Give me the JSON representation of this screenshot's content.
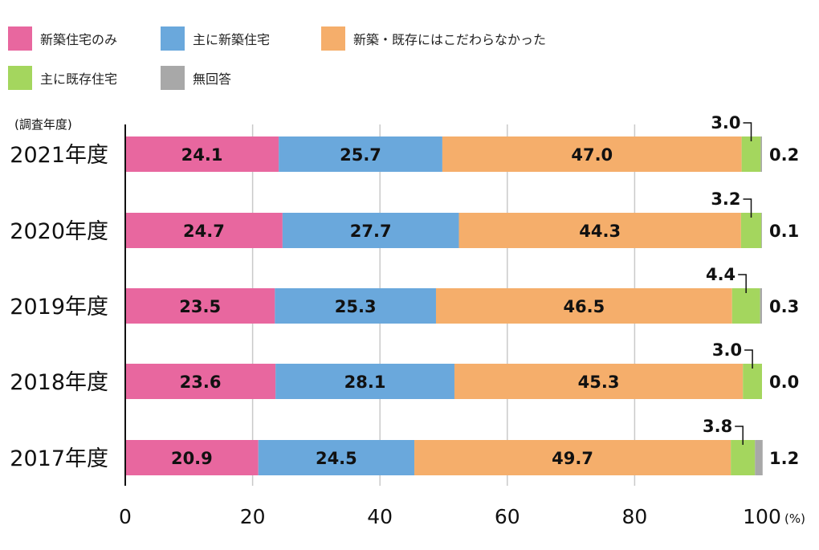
{
  "legend": [
    {
      "name": "新築住宅のみ",
      "color": "#E8679F"
    },
    {
      "name": "主に新築住宅",
      "color": "#6AA8DC"
    },
    {
      "name": "新築・既存にはこだわらなかった",
      "color": "#F5AE6B"
    },
    {
      "name": "主に既存住宅",
      "color": "#A4D65E"
    },
    {
      "name": "無回答",
      "color": "#A8A8A8"
    }
  ],
  "chart_data": {
    "type": "bar",
    "orientation": "horizontal",
    "stacked": true,
    "y_caption": "(調査年度)",
    "unit": "(%)",
    "categories": [
      "2021年度",
      "2020年度",
      "2019年度",
      "2018年度",
      "2017年度"
    ],
    "series": [
      {
        "name": "新築住宅のみ",
        "color": "#E8679F",
        "values": [
          24.1,
          24.7,
          23.5,
          23.6,
          20.9
        ]
      },
      {
        "name": "主に新築住宅",
        "color": "#6AA8DC",
        "values": [
          25.7,
          27.7,
          25.3,
          28.1,
          24.5
        ]
      },
      {
        "name": "新築・既存にはこだわらなかった",
        "color": "#F5AE6B",
        "values": [
          47.0,
          44.3,
          46.5,
          45.3,
          49.7
        ]
      },
      {
        "name": "主に既存住宅",
        "color": "#A4D65E",
        "values": [
          3.0,
          3.2,
          4.4,
          3.0,
          3.8
        ]
      },
      {
        "name": "無回答",
        "color": "#A8A8A8",
        "values": [
          0.2,
          0.1,
          0.3,
          0.0,
          1.2
        ]
      }
    ],
    "value_labels": [
      [
        "24.1",
        "25.7",
        "47.0",
        "3.0",
        "0.2"
      ],
      [
        "24.7",
        "27.7",
        "44.3",
        "3.2",
        "0.1"
      ],
      [
        "23.5",
        "25.3",
        "46.5",
        "4.4",
        "0.3"
      ],
      [
        "23.6",
        "28.1",
        "45.3",
        "3.0",
        "0.0"
      ],
      [
        "20.9",
        "24.5",
        "49.7",
        "3.8",
        "1.2"
      ]
    ],
    "xlim": [
      0,
      100
    ],
    "xticks": [
      "0",
      "20",
      "40",
      "60",
      "80",
      "100"
    ],
    "grid": true,
    "legend_position": "top-left"
  }
}
